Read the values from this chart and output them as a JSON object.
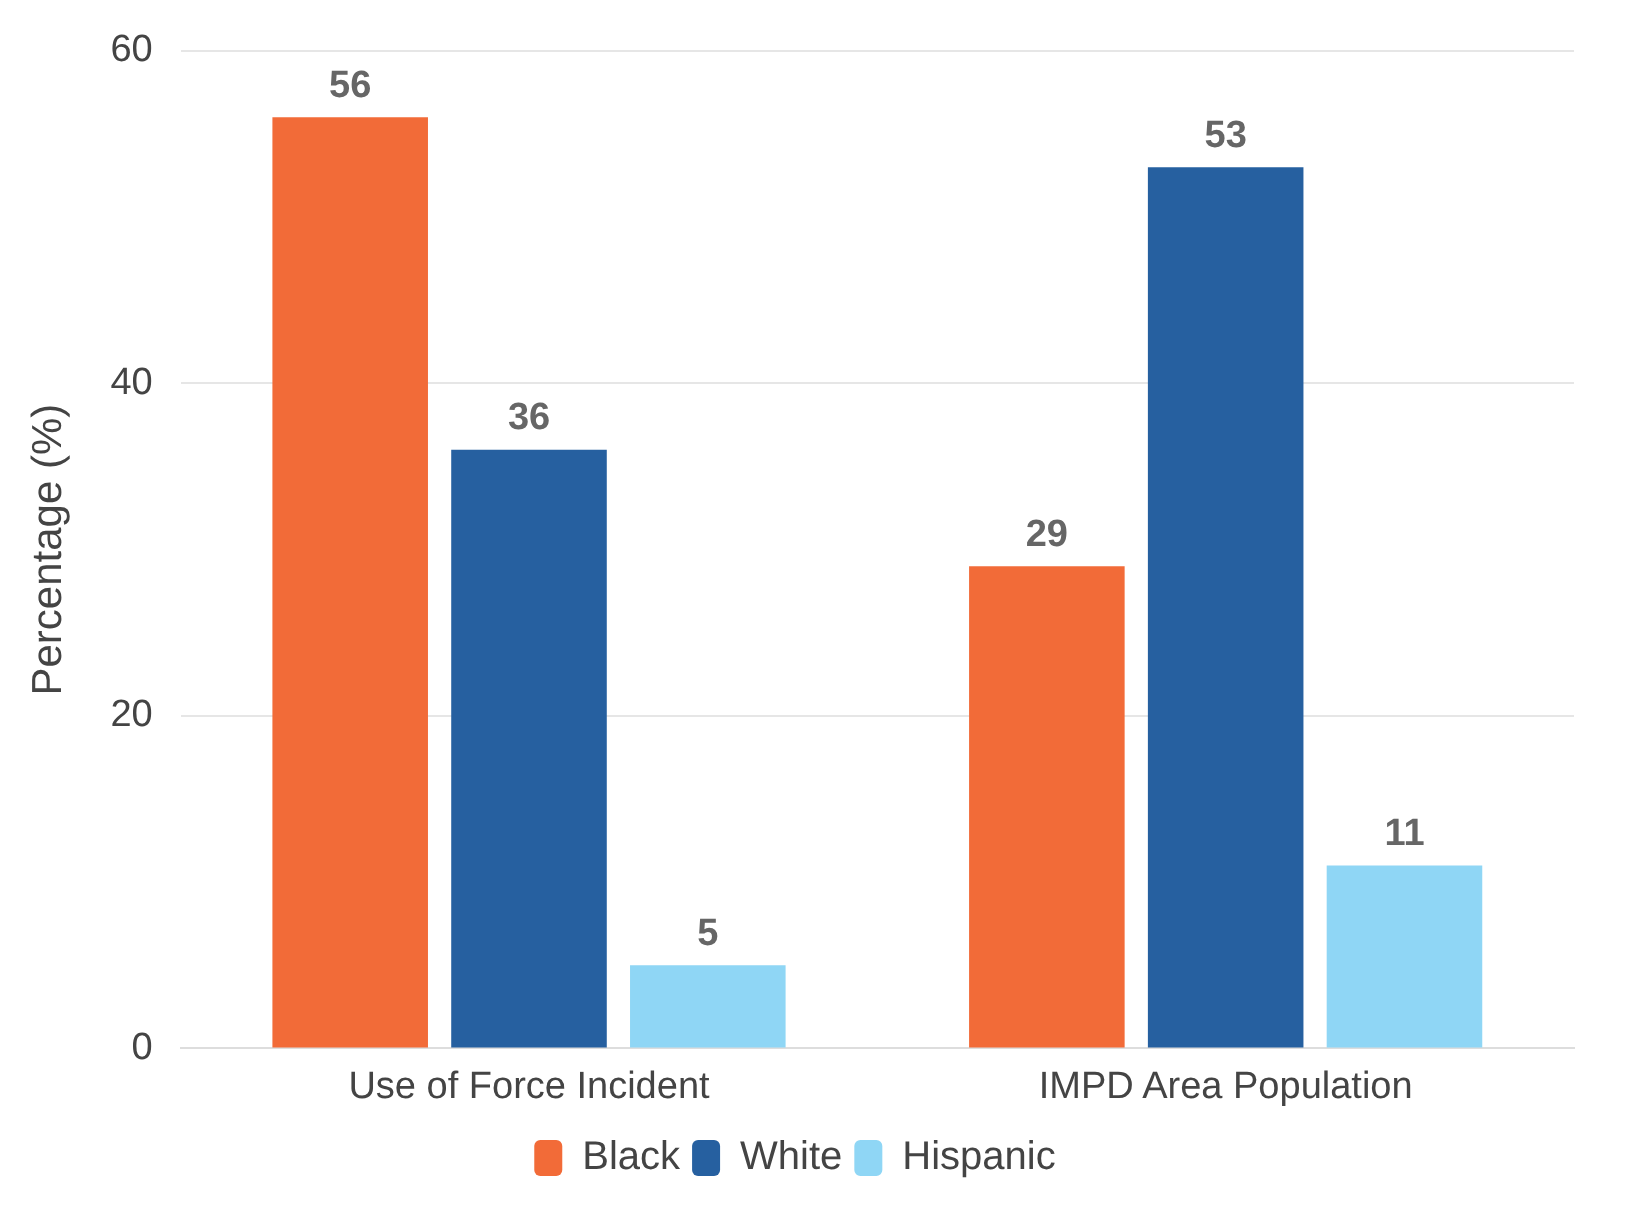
{
  "chart_data": {
    "type": "bar",
    "ylabel": "Percentage (%)",
    "categories": [
      "Use of Force Incident",
      "IMPD Area Population"
    ],
    "series": [
      {
        "name": "Black",
        "color": "#f26b38",
        "values": [
          56,
          29
        ]
      },
      {
        "name": "White",
        "color": "#2660a0",
        "values": [
          36,
          53
        ]
      },
      {
        "name": "Hispanic",
        "color": "#8fd6f5",
        "values": [
          5,
          11
        ]
      }
    ],
    "ylim": [
      0,
      60
    ],
    "yticks": [
      0,
      20,
      40,
      60
    ],
    "grid": "y",
    "legend": "bottom",
    "data_labels": true
  }
}
